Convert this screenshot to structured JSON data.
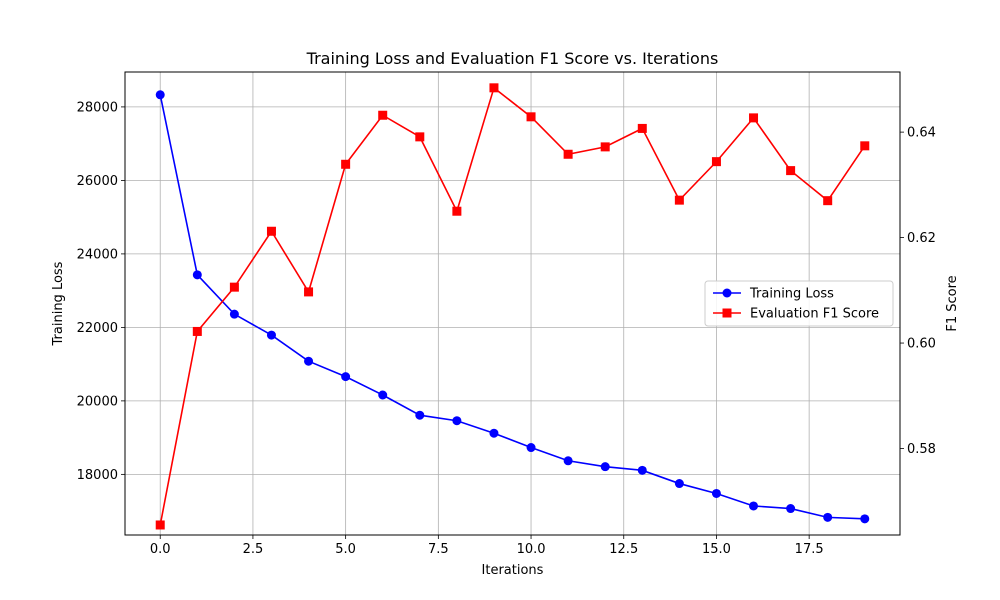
{
  "chart_data": {
    "type": "line",
    "title": "Training Loss and Evaluation F1 Score vs. Iterations",
    "xlabel": "Iterations",
    "ylabel_left": "Training Loss",
    "ylabel_right": "F1 Score",
    "xlim": [
      -0.95,
      19.95
    ],
    "ylim_left": [
      16350,
      28950
    ],
    "ylim_right": [
      0.5636,
      0.6514
    ],
    "x_ticks": [
      0,
      2.5,
      5,
      7.5,
      10,
      12.5,
      15,
      17.5
    ],
    "x_tick_labels": [
      "0.0",
      "2.5",
      "5.0",
      "7.5",
      "10.0",
      "12.5",
      "15.0",
      "17.5"
    ],
    "y_left_ticks": [
      18000,
      20000,
      22000,
      24000,
      26000,
      28000
    ],
    "y_left_tick_labels": [
      "18000",
      "20000",
      "22000",
      "24000",
      "26000",
      "28000"
    ],
    "y_right_ticks": [
      0.58,
      0.6,
      0.62,
      0.64
    ],
    "y_right_tick_labels": [
      "0.58",
      "0.60",
      "0.62",
      "0.64"
    ],
    "grid": true,
    "legend_position": "center-right",
    "x": [
      0,
      1,
      2,
      3,
      4,
      5,
      6,
      7,
      8,
      9,
      10,
      11,
      12,
      13,
      14,
      15,
      16,
      17,
      18,
      19
    ],
    "series": [
      {
        "name": "Training Loss",
        "axis": "left",
        "color": "#0000ff",
        "marker": "circle",
        "values": [
          28330,
          23430,
          22360,
          21790,
          21080,
          20660,
          20160,
          19610,
          19460,
          19120,
          18730,
          18370,
          18210,
          18110,
          17750,
          17480,
          17140,
          17070,
          16830,
          16790
        ]
      },
      {
        "name": "Evaluation F1 Score",
        "axis": "right",
        "color": "#ff0000",
        "marker": "square",
        "values": [
          0.5655,
          0.6022,
          0.6106,
          0.6212,
          0.6097,
          0.6339,
          0.6432,
          0.6391,
          0.625,
          0.6484,
          0.6429,
          0.6358,
          0.6372,
          0.6407,
          0.6271,
          0.6344,
          0.6427,
          0.6327,
          0.627,
          0.6374
        ]
      }
    ]
  }
}
